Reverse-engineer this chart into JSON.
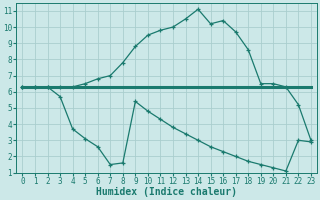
{
  "upper_x": [
    0,
    1,
    2,
    3,
    4,
    5,
    6,
    7,
    8,
    9,
    10,
    11,
    12,
    13,
    14,
    15,
    16,
    17,
    18,
    19,
    20,
    21,
    22,
    23
  ],
  "upper_y": [
    6.3,
    6.3,
    6.3,
    6.3,
    6.3,
    6.5,
    6.8,
    7.0,
    7.8,
    8.8,
    9.5,
    9.8,
    10.0,
    10.5,
    11.1,
    10.2,
    10.4,
    9.7,
    8.6,
    6.5,
    6.5,
    6.3,
    5.2,
    3.0
  ],
  "middle_x": [
    0,
    1,
    2,
    3,
    4,
    5,
    6,
    7,
    8,
    9,
    10,
    11,
    12,
    13,
    14,
    15,
    16,
    17,
    18,
    19,
    20,
    21,
    22,
    23
  ],
  "middle_y": [
    6.3,
    6.3,
    6.3,
    6.3,
    6.3,
    6.3,
    6.3,
    6.3,
    6.3,
    6.3,
    6.3,
    6.3,
    6.3,
    6.3,
    6.3,
    6.3,
    6.3,
    6.3,
    6.3,
    6.3,
    6.3,
    6.3,
    6.3,
    6.3
  ],
  "lower_x": [
    0,
    1,
    2,
    3,
    4,
    5,
    6,
    7,
    8,
    9,
    10,
    11,
    12,
    13,
    14,
    15,
    16,
    17,
    18,
    19,
    20,
    21,
    22,
    23
  ],
  "lower_y": [
    6.3,
    6.3,
    6.3,
    5.7,
    3.7,
    3.1,
    2.6,
    1.5,
    1.6,
    5.4,
    4.8,
    4.3,
    3.8,
    3.4,
    3.0,
    2.6,
    2.3,
    2.0,
    1.7,
    1.5,
    1.3,
    1.1,
    3.0,
    2.9
  ],
  "line_color": "#1a7a6e",
  "bg_color": "#cce8e8",
  "grid_color": "#aacece",
  "xlabel": "Humidex (Indice chaleur)",
  "xlim": [
    -0.5,
    23.5
  ],
  "ylim": [
    1,
    11.5
  ],
  "xticks": [
    0,
    1,
    2,
    3,
    4,
    5,
    6,
    7,
    8,
    9,
    10,
    11,
    12,
    13,
    14,
    15,
    16,
    17,
    18,
    19,
    20,
    21,
    22,
    23
  ],
  "yticks": [
    1,
    2,
    3,
    4,
    5,
    6,
    7,
    8,
    9,
    10,
    11
  ],
  "axis_fontsize": 6,
  "tick_fontsize": 5.5,
  "xlabel_fontsize": 7
}
